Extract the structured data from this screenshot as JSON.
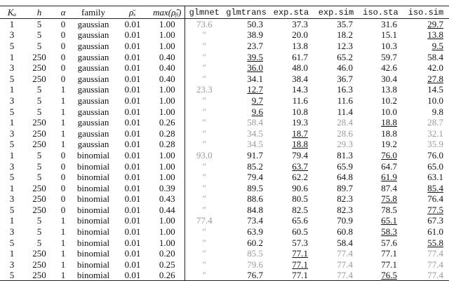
{
  "table": {
    "columns": [
      "Kₐ",
      "h",
      "α",
      "family",
      "ρ̄ₓ",
      "max(ρ̂ᵦ)",
      "glmnet",
      "glmtrans",
      "exp.sta",
      "exp.sim",
      "iso.sta",
      "iso.sim"
    ],
    "mono_columns": [
      6,
      7,
      8,
      9,
      10,
      11
    ],
    "grey_columns": [
      6
    ],
    "rows": [
      {
        "cells": [
          "1",
          "5",
          "0",
          "gaussian",
          "0.01",
          "1.00",
          "73.6",
          "50.3",
          "37.3",
          "35.7",
          "31.6",
          "29.7"
        ],
        "underline": 11,
        "grey": []
      },
      {
        "cells": [
          "3",
          "5",
          "0",
          "gaussian",
          "0.01",
          "1.00",
          "″",
          "38.9",
          "20.0",
          "18.2",
          "15.1",
          "13.8"
        ],
        "underline": 11,
        "grey": []
      },
      {
        "cells": [
          "5",
          "5",
          "0",
          "gaussian",
          "0.01",
          "1.00",
          "″",
          "23.7",
          "13.8",
          "12.3",
          "10.3",
          "9.5"
        ],
        "underline": 11,
        "grey": []
      },
      {
        "cells": [
          "1",
          "250",
          "0",
          "gaussian",
          "0.01",
          "0.40",
          "″",
          "39.5",
          "61.7",
          "65.2",
          "59.7",
          "58.4"
        ],
        "underline": 7,
        "grey": []
      },
      {
        "cells": [
          "3",
          "250",
          "0",
          "gaussian",
          "0.01",
          "0.40",
          "″",
          "36.0",
          "48.0",
          "46.0",
          "42.6",
          "42.0"
        ],
        "underline": 7,
        "grey": []
      },
      {
        "cells": [
          "5",
          "250",
          "0",
          "gaussian",
          "0.01",
          "0.40",
          "″",
          "34.1",
          "38.4",
          "36.7",
          "30.4",
          "27.8"
        ],
        "underline": 11,
        "grey": []
      },
      {
        "cells": [
          "1",
          "5",
          "1",
          "gaussian",
          "0.01",
          "1.00",
          "23.3",
          "12.7",
          "14.3",
          "16.3",
          "13.8",
          "14.5"
        ],
        "underline": 7,
        "grey": []
      },
      {
        "cells": [
          "3",
          "5",
          "1",
          "gaussian",
          "0.01",
          "1.00",
          "″",
          "9.7",
          "11.6",
          "11.6",
          "10.2",
          "10.0"
        ],
        "underline": 7,
        "grey": []
      },
      {
        "cells": [
          "5",
          "5",
          "1",
          "gaussian",
          "0.01",
          "1.00",
          "″",
          "9.6",
          "10.8",
          "11.4",
          "10.0",
          "9.8"
        ],
        "underline": 7,
        "grey": []
      },
      {
        "cells": [
          "1",
          "250",
          "1",
          "gaussian",
          "0.01",
          "0.26",
          "″",
          "58.4",
          "19.3",
          "28.4",
          "18.8",
          "28.7"
        ],
        "underline": 10,
        "grey": [
          7,
          9,
          11
        ]
      },
      {
        "cells": [
          "3",
          "250",
          "1",
          "gaussian",
          "0.01",
          "0.28",
          "″",
          "34.5",
          "18.7",
          "28.6",
          "18.8",
          "32.1"
        ],
        "underline": 8,
        "grey": [
          7,
          9,
          11
        ]
      },
      {
        "cells": [
          "5",
          "250",
          "1",
          "gaussian",
          "0.01",
          "0.28",
          "″",
          "34.5",
          "18.8",
          "29.3",
          "19.2",
          "35.9"
        ],
        "underline": 8,
        "grey": [
          7,
          9,
          11
        ]
      },
      {
        "cells": [
          "1",
          "5",
          "0",
          "binomial",
          "0.01",
          "1.00",
          "93.0",
          "91.7",
          "79.4",
          "81.3",
          "76.0",
          "76.0"
        ],
        "underline": 10,
        "grey": []
      },
      {
        "cells": [
          "3",
          "5",
          "0",
          "binomial",
          "0.01",
          "1.00",
          "″",
          "85.2",
          "63.7",
          "65.9",
          "64.7",
          "65.0"
        ],
        "underline": 8,
        "grey": []
      },
      {
        "cells": [
          "5",
          "5",
          "0",
          "binomial",
          "0.01",
          "1.00",
          "″",
          "79.4",
          "62.2",
          "64.8",
          "61.9",
          "63.1"
        ],
        "underline": 10,
        "grey": []
      },
      {
        "cells": [
          "1",
          "250",
          "0",
          "binomial",
          "0.01",
          "0.39",
          "″",
          "89.5",
          "90.6",
          "89.7",
          "87.4",
          "85.4"
        ],
        "underline": 11,
        "grey": []
      },
      {
        "cells": [
          "3",
          "250",
          "0",
          "binomial",
          "0.01",
          "0.43",
          "″",
          "88.6",
          "80.5",
          "82.3",
          "75.8",
          "76.4"
        ],
        "underline": 10,
        "grey": []
      },
      {
        "cells": [
          "5",
          "250",
          "0",
          "binomial",
          "0.01",
          "0.44",
          "″",
          "84.8",
          "82.5",
          "82.3",
          "78.5",
          "77.5"
        ],
        "underline": 11,
        "grey": []
      },
      {
        "cells": [
          "1",
          "5",
          "1",
          "binomial",
          "0.01",
          "1.00",
          "77.4",
          "73.4",
          "65.6",
          "70.9",
          "65.1",
          "67.3"
        ],
        "underline": 10,
        "grey": []
      },
      {
        "cells": [
          "3",
          "5",
          "1",
          "binomial",
          "0.01",
          "1.00",
          "″",
          "63.9",
          "60.5",
          "60.8",
          "58.3",
          "61.0"
        ],
        "underline": 10,
        "grey": []
      },
      {
        "cells": [
          "5",
          "5",
          "1",
          "binomial",
          "0.01",
          "1.00",
          "″",
          "60.2",
          "57.3",
          "58.4",
          "57.6",
          "55.8"
        ],
        "underline": 11,
        "grey": []
      },
      {
        "cells": [
          "1",
          "250",
          "1",
          "binomial",
          "0.01",
          "0.20",
          "″",
          "85.5",
          "77.1",
          "77.4",
          "77.1",
          "77.4"
        ],
        "underline": 8,
        "grey": [
          7,
          9,
          11
        ]
      },
      {
        "cells": [
          "3",
          "250",
          "1",
          "binomial",
          "0.01",
          "0.25",
          "″",
          "79.6",
          "77.1",
          "77.4",
          "77.1",
          "77.4"
        ],
        "underline": 8,
        "grey": [
          7,
          9,
          11
        ]
      },
      {
        "cells": [
          "5",
          "250",
          "1",
          "binomial",
          "0.01",
          "0.26",
          "″",
          "76.7",
          "77.1",
          "77.4",
          "76.5",
          "77.4"
        ],
        "underline": 10,
        "grey": [
          9,
          11
        ]
      }
    ]
  }
}
